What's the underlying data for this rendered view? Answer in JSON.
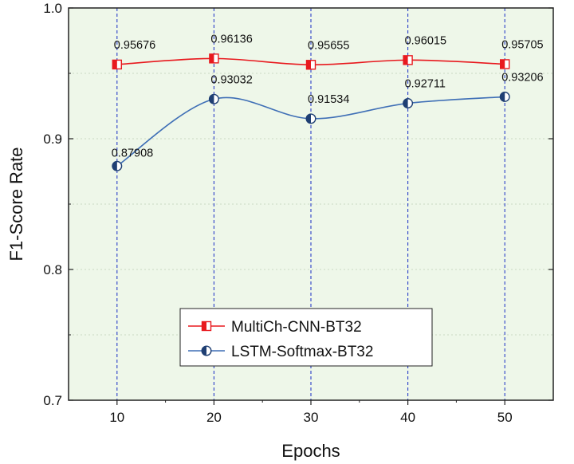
{
  "chart_data": {
    "type": "line",
    "xlabel": "Epochs",
    "ylabel": "F1-Score Rate",
    "x": [
      10,
      20,
      30,
      40,
      50
    ],
    "xlim": [
      5,
      55
    ],
    "ylim": [
      0.7,
      1.0
    ],
    "xticks": [
      "10",
      "20",
      "30",
      "40",
      "50"
    ],
    "yticks": [
      "0.7",
      "0.8",
      "0.9",
      "1.0"
    ],
    "grid": true,
    "legend_position": "lower-left",
    "plot_background": "#eef7e9",
    "series": [
      {
        "name": "MultiCh-CNN-BT32",
        "values": [
          0.95676,
          0.96136,
          0.95655,
          0.96015,
          0.95705
        ],
        "labels": [
          "0.95676",
          "0.96136",
          "0.95655",
          "0.96015",
          "0.95705"
        ],
        "color": "#e8191e",
        "marker": "half-filled-square"
      },
      {
        "name": "LSTM-Softmax-BT32",
        "values": [
          0.87908,
          0.93032,
          0.91534,
          0.92711,
          0.93206
        ],
        "labels": [
          "0.87908",
          "0.93032",
          "0.91534",
          "0.92711",
          "0.93206"
        ],
        "color": "#3f6fb6",
        "marker": "half-filled-circle"
      }
    ]
  }
}
